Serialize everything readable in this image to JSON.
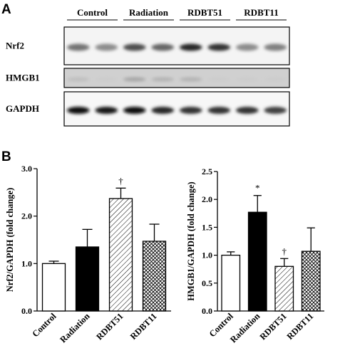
{
  "panels": {
    "a": "A",
    "b": "B"
  },
  "blot": {
    "groups": [
      "Control",
      "Radiation",
      "RDBT51",
      "RDBT11"
    ],
    "proteins": [
      "Nrf2",
      "HMGB1",
      "GAPDH"
    ],
    "band_intensity": {
      "Nrf2": [
        0.55,
        0.45,
        0.7,
        0.6,
        0.85,
        0.8,
        0.45,
        0.5
      ],
      "HMGB1": [
        0.25,
        0.2,
        0.35,
        0.3,
        0.3,
        0.2,
        0.2,
        0.2
      ],
      "GAPDH": [
        0.95,
        0.9,
        0.95,
        0.85,
        0.8,
        0.8,
        0.8,
        0.75
      ]
    }
  },
  "colors": {
    "ink": "#000000",
    "background": "#ffffff",
    "blot_bg": "#d9d9d9"
  },
  "chart_data": [
    {
      "type": "bar",
      "categories": [
        "Control",
        "Radiation",
        "RDBT51",
        "RDBT11"
      ],
      "values": [
        1.0,
        1.35,
        2.37,
        1.47
      ],
      "errors": [
        0.05,
        0.37,
        0.22,
        0.36
      ],
      "fills": [
        "white",
        "black",
        "hatch",
        "crosshatch"
      ],
      "significance": [
        "",
        "",
        "†",
        ""
      ],
      "ylabel": "Nrf2/GAPDH (fold change)",
      "ylim": [
        0,
        3.0
      ],
      "yticks": [
        "0.0",
        "1.0",
        "2.0",
        "3.0"
      ],
      "ytick_values": [
        0,
        1,
        2,
        3
      ]
    },
    {
      "type": "bar",
      "categories": [
        "Control",
        "Radiation",
        "RDBT51",
        "RDBT11"
      ],
      "values": [
        1.0,
        1.77,
        0.8,
        1.07
      ],
      "errors": [
        0.06,
        0.3,
        0.14,
        0.42
      ],
      "fills": [
        "white",
        "black",
        "hatch",
        "crosshatch"
      ],
      "significance": [
        "",
        "*",
        "†",
        ""
      ],
      "ylabel": "HMGB1/GAPDH (fold change)",
      "ylim": [
        0,
        2.5
      ],
      "yticks": [
        "0.0",
        "0.5",
        "1.0",
        "1.5",
        "2.0",
        "2.5"
      ],
      "ytick_values": [
        0,
        0.5,
        1,
        1.5,
        2,
        2.5
      ]
    }
  ]
}
